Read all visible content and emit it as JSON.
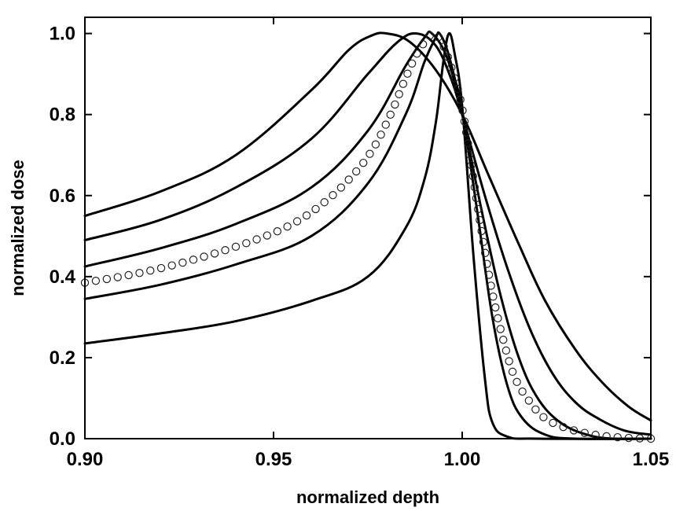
{
  "chart_data": {
    "type": "line",
    "xlabel": "normalized depth",
    "ylabel": "normalized dose",
    "xlim": [
      0.9,
      1.05
    ],
    "ylim": [
      0.0,
      1.04
    ],
    "x_ticks": [
      0.9,
      0.95,
      1.0,
      1.05
    ],
    "x_tick_labels": [
      "0.90",
      "0.95",
      "1.00",
      "1.05"
    ],
    "y_ticks": [
      0.0,
      0.2,
      0.4,
      0.6,
      0.8,
      1.0
    ],
    "y_tick_labels": [
      "0.0",
      "0.2",
      "0.4",
      "0.6",
      "0.8",
      "1.0"
    ],
    "grid": false,
    "series": [
      {
        "style": "line",
        "points": [
          [
            0.9,
            0.235
          ],
          [
            0.92,
            0.26
          ],
          [
            0.94,
            0.29
          ],
          [
            0.96,
            0.34
          ],
          [
            0.975,
            0.4
          ],
          [
            0.985,
            0.52
          ],
          [
            0.99,
            0.64
          ],
          [
            0.993,
            0.78
          ],
          [
            0.995,
            0.93
          ],
          [
            0.9965,
            1.0
          ],
          [
            0.998,
            0.95
          ],
          [
            1.0,
            0.82
          ],
          [
            1.003,
            0.45
          ],
          [
            1.006,
            0.15
          ],
          [
            1.008,
            0.04
          ],
          [
            1.012,
            0.005
          ],
          [
            1.02,
            0.0
          ],
          [
            1.05,
            0.0
          ]
        ]
      },
      {
        "style": "line",
        "points": [
          [
            0.9,
            0.345
          ],
          [
            0.92,
            0.38
          ],
          [
            0.94,
            0.43
          ],
          [
            0.96,
            0.5
          ],
          [
            0.975,
            0.63
          ],
          [
            0.985,
            0.8
          ],
          [
            0.99,
            0.93
          ],
          [
            0.993,
            0.99
          ],
          [
            0.994,
            1.0
          ],
          [
            0.996,
            0.96
          ],
          [
            0.998,
            0.89
          ],
          [
            1.0,
            0.81
          ],
          [
            1.004,
            0.56
          ],
          [
            1.008,
            0.3
          ],
          [
            1.012,
            0.13
          ],
          [
            1.016,
            0.05
          ],
          [
            1.022,
            0.01
          ],
          [
            1.03,
            0.0
          ],
          [
            1.05,
            0.0
          ]
        ]
      },
      {
        "style": "line",
        "points": [
          [
            0.9,
            0.425
          ],
          [
            0.92,
            0.47
          ],
          [
            0.94,
            0.53
          ],
          [
            0.96,
            0.62
          ],
          [
            0.975,
            0.76
          ],
          [
            0.985,
            0.92
          ],
          [
            0.99,
            0.99
          ],
          [
            0.992,
            1.0
          ],
          [
            0.996,
            0.94
          ],
          [
            1.0,
            0.8
          ],
          [
            1.005,
            0.57
          ],
          [
            1.01,
            0.36
          ],
          [
            1.015,
            0.2
          ],
          [
            1.02,
            0.1
          ],
          [
            1.026,
            0.04
          ],
          [
            1.033,
            0.01
          ],
          [
            1.04,
            0.0
          ],
          [
            1.05,
            0.0
          ]
        ]
      },
      {
        "style": "line",
        "points": [
          [
            0.9,
            0.49
          ],
          [
            0.92,
            0.54
          ],
          [
            0.94,
            0.62
          ],
          [
            0.96,
            0.74
          ],
          [
            0.975,
            0.9
          ],
          [
            0.983,
            0.98
          ],
          [
            0.988,
            1.0
          ],
          [
            0.993,
            0.97
          ],
          [
            0.997,
            0.89
          ],
          [
            1.0,
            0.8
          ],
          [
            1.006,
            0.6
          ],
          [
            1.012,
            0.42
          ],
          [
            1.018,
            0.27
          ],
          [
            1.024,
            0.16
          ],
          [
            1.03,
            0.09
          ],
          [
            1.036,
            0.05
          ],
          [
            1.043,
            0.02
          ],
          [
            1.05,
            0.01
          ]
        ]
      },
      {
        "style": "line",
        "points": [
          [
            0.9,
            0.55
          ],
          [
            0.92,
            0.61
          ],
          [
            0.94,
            0.7
          ],
          [
            0.96,
            0.86
          ],
          [
            0.97,
            0.96
          ],
          [
            0.976,
            0.995
          ],
          [
            0.98,
            1.0
          ],
          [
            0.986,
            0.98
          ],
          [
            0.993,
            0.91
          ],
          [
            1.0,
            0.8
          ],
          [
            1.007,
            0.65
          ],
          [
            1.015,
            0.48
          ],
          [
            1.022,
            0.34
          ],
          [
            1.03,
            0.22
          ],
          [
            1.037,
            0.14
          ],
          [
            1.044,
            0.08
          ],
          [
            1.05,
            0.045
          ]
        ]
      },
      {
        "style": "markers",
        "points": [
          [
            0.9,
            0.385
          ],
          [
            0.915,
            0.41
          ],
          [
            0.93,
            0.445
          ],
          [
            0.945,
            0.49
          ],
          [
            0.955,
            0.53
          ],
          [
            0.963,
            0.58
          ],
          [
            0.97,
            0.64
          ],
          [
            0.976,
            0.71
          ],
          [
            0.981,
            0.8
          ],
          [
            0.985,
            0.89
          ],
          [
            0.988,
            0.95
          ],
          [
            0.991,
            0.99
          ],
          [
            0.9925,
            1.0
          ],
          [
            0.995,
            0.97
          ],
          [
            0.998,
            0.89
          ],
          [
            1.0,
            0.815
          ],
          [
            1.002,
            0.7
          ],
          [
            1.005,
            0.52
          ],
          [
            1.008,
            0.36
          ],
          [
            1.011,
            0.24
          ],
          [
            1.014,
            0.15
          ],
          [
            1.018,
            0.09
          ],
          [
            1.022,
            0.05
          ],
          [
            1.028,
            0.025
          ],
          [
            1.035,
            0.01
          ],
          [
            1.042,
            0.003
          ],
          [
            1.05,
            0.0
          ]
        ]
      }
    ]
  }
}
